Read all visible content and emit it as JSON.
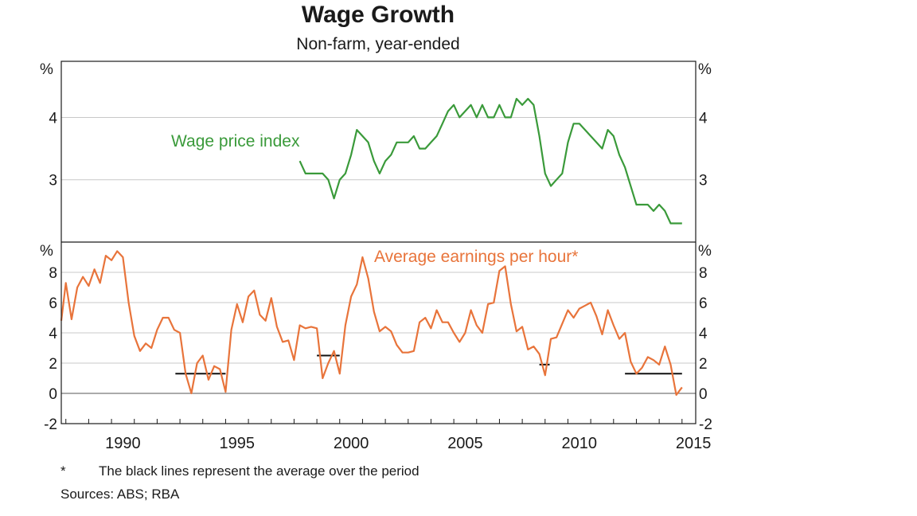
{
  "title": "Wage Growth",
  "subtitle": "Non-farm, year-ended",
  "footnote": {
    "marker": "*",
    "text": "The black lines represent the average over the period"
  },
  "sources": "Sources:  ABS; RBA",
  "chart_data": [
    {
      "type": "line",
      "panel": "top",
      "ylim": [
        2.0,
        4.9
      ],
      "yticks": [
        "3",
        "4"
      ],
      "yunit": "%",
      "grid": true,
      "series": [
        {
          "name": "Wage price index",
          "color": "#3a9a3a",
          "x": [
            1998.25,
            1998.5,
            1998.75,
            1999.0,
            1999.25,
            1999.5,
            1999.75,
            2000.0,
            2000.25,
            2000.5,
            2000.75,
            2001.0,
            2001.25,
            2001.5,
            2001.75,
            2002.0,
            2002.25,
            2002.5,
            2002.75,
            2003.0,
            2003.25,
            2003.5,
            2003.75,
            2004.0,
            2004.25,
            2004.5,
            2004.75,
            2005.0,
            2005.25,
            2005.5,
            2005.75,
            2006.0,
            2006.25,
            2006.5,
            2006.75,
            2007.0,
            2007.25,
            2007.5,
            2007.75,
            2008.0,
            2008.25,
            2008.5,
            2008.75,
            2009.0,
            2009.25,
            2009.5,
            2009.75,
            2010.0,
            2010.25,
            2010.5,
            2010.75,
            2011.0,
            2011.25,
            2011.5,
            2011.75,
            2012.0,
            2012.25,
            2012.5,
            2012.75,
            2013.0,
            2013.25,
            2013.5,
            2013.75,
            2014.0,
            2014.25,
            2014.5,
            2014.75,
            2015.0
          ],
          "values": [
            3.3,
            3.1,
            3.1,
            3.1,
            3.1,
            3.0,
            2.7,
            3.0,
            3.1,
            3.4,
            3.8,
            3.7,
            3.6,
            3.3,
            3.1,
            3.3,
            3.4,
            3.6,
            3.6,
            3.6,
            3.7,
            3.5,
            3.5,
            3.6,
            3.7,
            3.9,
            4.1,
            4.2,
            4.0,
            4.1,
            4.2,
            4.0,
            4.2,
            4.0,
            4.0,
            4.2,
            4.0,
            4.0,
            4.3,
            4.2,
            4.3,
            4.2,
            3.7,
            3.1,
            2.9,
            3.0,
            3.1,
            3.6,
            3.9,
            3.9,
            3.8,
            3.7,
            3.6,
            3.5,
            3.8,
            3.7,
            3.4,
            3.2,
            2.9,
            2.6,
            2.6,
            2.6,
            2.5,
            2.6,
            2.5,
            2.3,
            2.3,
            2.3
          ]
        }
      ]
    },
    {
      "type": "line",
      "panel": "bottom",
      "ylim": [
        -2,
        10
      ],
      "yticks": [
        "-2",
        "0",
        "2",
        "4",
        "6",
        "8"
      ],
      "yunit": "%",
      "grid": true,
      "xlim": [
        1987.8,
        2015.6
      ],
      "xticks": [
        "1990",
        "1995",
        "2000",
        "2005",
        "2010",
        "2015"
      ],
      "series": [
        {
          "name": "Average earnings per hour*",
          "color": "#e8743b",
          "x": [
            1987.8,
            1988.0,
            1988.25,
            1988.5,
            1988.75,
            1989.0,
            1989.25,
            1989.5,
            1989.75,
            1990.0,
            1990.25,
            1990.5,
            1990.75,
            1991.0,
            1991.25,
            1991.5,
            1991.75,
            1992.0,
            1992.25,
            1992.5,
            1992.75,
            1993.0,
            1993.25,
            1993.5,
            1993.75,
            1994.0,
            1994.25,
            1994.5,
            1994.75,
            1995.0,
            1995.25,
            1995.5,
            1995.75,
            1996.0,
            1996.25,
            1996.5,
            1996.75,
            1997.0,
            1997.25,
            1997.5,
            1997.75,
            1998.0,
            1998.25,
            1998.5,
            1998.75,
            1999.0,
            1999.25,
            1999.5,
            1999.75,
            2000.0,
            2000.25,
            2000.5,
            2000.75,
            2001.0,
            2001.25,
            2001.5,
            2001.75,
            2002.0,
            2002.25,
            2002.5,
            2002.75,
            2003.0,
            2003.25,
            2003.5,
            2003.75,
            2004.0,
            2004.25,
            2004.5,
            2004.75,
            2005.0,
            2005.25,
            2005.5,
            2005.75,
            2006.0,
            2006.25,
            2006.5,
            2006.75,
            2007.0,
            2007.25,
            2007.5,
            2007.75,
            2008.0,
            2008.25,
            2008.5,
            2008.75,
            2009.0,
            2009.25,
            2009.5,
            2009.75,
            2010.0,
            2010.25,
            2010.5,
            2010.75,
            2011.0,
            2011.25,
            2011.5,
            2011.75,
            2012.0,
            2012.25,
            2012.5,
            2012.75,
            2013.0,
            2013.25,
            2013.5,
            2013.75,
            2014.0,
            2014.25,
            2014.5,
            2014.75,
            2015.0
          ],
          "values": [
            4.8,
            7.3,
            4.9,
            7.0,
            7.7,
            7.1,
            8.2,
            7.3,
            9.1,
            8.8,
            9.4,
            9.0,
            6.0,
            3.8,
            2.8,
            3.3,
            3.0,
            4.2,
            5.0,
            5.0,
            4.2,
            4.0,
            1.3,
            0.0,
            2.0,
            2.5,
            0.9,
            1.8,
            1.6,
            0.1,
            4.2,
            5.9,
            4.7,
            6.4,
            6.8,
            5.2,
            4.8,
            6.3,
            4.4,
            3.4,
            3.5,
            2.2,
            4.5,
            4.3,
            4.4,
            4.3,
            1.0,
            2.0,
            2.8,
            1.3,
            4.5,
            6.4,
            7.2,
            9.0,
            7.6,
            5.4,
            4.1,
            4.4,
            4.1,
            3.2,
            2.7,
            2.7,
            2.8,
            4.7,
            5.0,
            4.3,
            5.5,
            4.7,
            4.7,
            4.0,
            3.4,
            4.0,
            5.5,
            4.5,
            4.0,
            5.9,
            6.0,
            8.1,
            8.4,
            5.9,
            4.1,
            4.4,
            2.9,
            3.1,
            2.6,
            1.2,
            3.6,
            3.7,
            4.6,
            5.5,
            5.0,
            5.6,
            5.8,
            6.0,
            5.1,
            3.9,
            5.5,
            4.5,
            3.6,
            4.0,
            2.1,
            1.3,
            1.7,
            2.4,
            2.2,
            1.9,
            3.1,
            1.9,
            -0.1,
            0.4
          ]
        }
      ],
      "averages": [
        {
          "x_start": 1992.8,
          "x_end": 1995.0,
          "value": 1.3
        },
        {
          "x_start": 1999.0,
          "x_end": 2000.0,
          "value": 2.5
        },
        {
          "x_start": 2008.75,
          "x_end": 2009.2,
          "value": 1.9
        },
        {
          "x_start": 2012.5,
          "x_end": 2015.0,
          "value": 1.3
        }
      ]
    }
  ]
}
